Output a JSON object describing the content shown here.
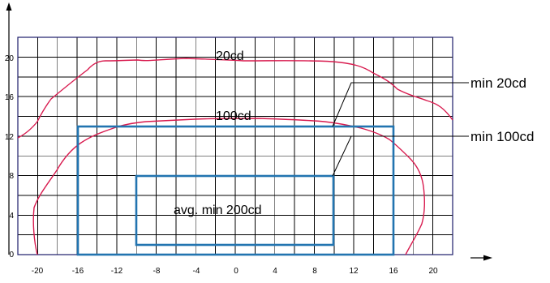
{
  "diagram": {
    "x_ticks": [
      "-20",
      "-16",
      "-12",
      "-8",
      "-4",
      "0",
      "4",
      "8",
      "12",
      "16",
      "20"
    ],
    "y_ticks": [
      "0",
      "4",
      "8",
      "12",
      "16",
      "20"
    ],
    "labels": {
      "contour_20": "20cd",
      "contour_100": "100cd",
      "box_200": "avg. min 200cd"
    },
    "callouts": {
      "min_20": "min 20cd",
      "min_100": "min 100cd"
    },
    "colors": {
      "grid": "#000000",
      "frame": "#1d1d6b",
      "contour": "#d81b4f",
      "box": "#2274b0"
    }
  }
}
